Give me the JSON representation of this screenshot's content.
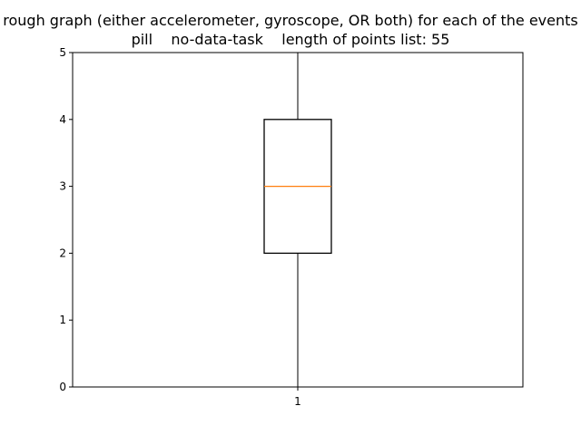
{
  "chart_data": {
    "type": "box",
    "title_lines": [
      "rough graph (either accelerometer, gyroscope, OR both) for each of the events",
      "pill    no-data-task    length of points list: 55"
    ],
    "xlabel": "",
    "ylabel": "",
    "ylim": [
      0,
      5
    ],
    "yticks": [
      "0",
      "1",
      "2",
      "3",
      "4",
      "5"
    ],
    "xticks": [
      "1"
    ],
    "boxes": [
      {
        "label": "1",
        "whisker_low": 0,
        "q1": 2,
        "median": 3,
        "q3": 4,
        "whisker_high": 5
      }
    ],
    "colors": {
      "box": "#000000",
      "median": "#ff7f0e",
      "axes": "#000000"
    },
    "grid": false
  }
}
